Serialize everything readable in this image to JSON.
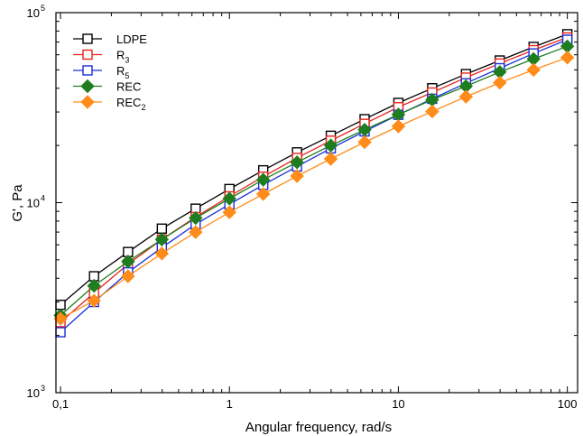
{
  "chart_data": {
    "type": "line",
    "xlabel": "Angular frequency, rad/s",
    "ylabel": "G', Pa",
    "x_scale": "log",
    "y_scale": "log",
    "xlim": [
      0.094,
      115
    ],
    "ylim": [
      1000,
      100000
    ],
    "x_ticks": [
      {
        "value": 0.1,
        "label": "0,1"
      },
      {
        "value": 1,
        "label": "1"
      },
      {
        "value": 10,
        "label": "10"
      },
      {
        "value": 100,
        "label": "100"
      }
    ],
    "y_ticks": [
      {
        "value": 1000,
        "base": "10",
        "exp": "3"
      },
      {
        "value": 10000,
        "base": "10",
        "exp": "4"
      },
      {
        "value": 100000,
        "base": "10",
        "exp": "5"
      }
    ],
    "legend_position": "top-left",
    "x": [
      0.1,
      0.158,
      0.251,
      0.398,
      0.631,
      1,
      1.585,
      2.512,
      3.981,
      6.31,
      10,
      15.85,
      25.12,
      39.81,
      63.1,
      100
    ],
    "series": [
      {
        "name": "LDPE",
        "name_base": "LDPE",
        "name_sub": "",
        "color": "#000000",
        "marker": "open-square",
        "values": [
          2900,
          4100,
          5500,
          7300,
          9300,
          11800,
          14800,
          18400,
          22500,
          27500,
          33500,
          40000,
          47500,
          56000,
          66000,
          77000
        ]
      },
      {
        "name": "R3",
        "name_base": "R",
        "name_sub": "3",
        "color": "#e8231a",
        "marker": "open-square",
        "values": [
          2350,
          3350,
          4750,
          6400,
          8400,
          10800,
          13700,
          17200,
          21200,
          26000,
          31800,
          38000,
          45500,
          54000,
          63500,
          74000
        ]
      },
      {
        "name": "R5",
        "name_base": "R",
        "name_sub": "5",
        "color": "#1a2fd8",
        "marker": "open-square",
        "values": [
          2080,
          3000,
          4300,
          5800,
          7700,
          9800,
          12400,
          15500,
          19300,
          23700,
          29000,
          35200,
          42500,
          51000,
          61000,
          72000
        ]
      },
      {
        "name": "REC",
        "name_base": "REC",
        "name_sub": "",
        "color": "#1e7d1e",
        "marker": "filled-diamond",
        "values": [
          2550,
          3650,
          4900,
          6400,
          8300,
          10500,
          13200,
          16300,
          20000,
          24200,
          29100,
          34800,
          41000,
          48700,
          57000,
          66500
        ]
      },
      {
        "name": "REC2",
        "name_base": "REC",
        "name_sub": "2",
        "color": "#ff8c1a",
        "marker": "filled-diamond",
        "values": [
          2450,
          3050,
          4100,
          5400,
          7000,
          8900,
          11100,
          13800,
          17000,
          20800,
          25200,
          30200,
          36100,
          42800,
          50000,
          58000
        ]
      }
    ]
  }
}
